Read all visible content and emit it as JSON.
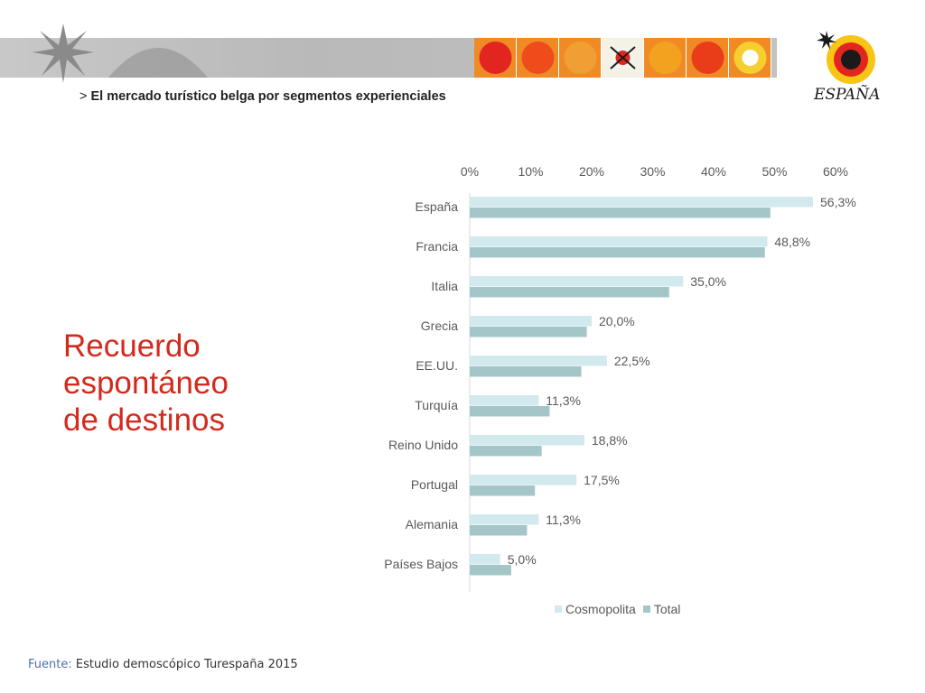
{
  "header": {
    "breadcrumb_arrow": ">",
    "breadcrumb_text": "El mercado turístico belga por segmentos experienciales",
    "logo_text": "ESPAÑA",
    "tile_colors": [
      "#e2261f",
      "#ef4c1c",
      "#f0a032",
      "#f5f5ee",
      "#f3a21f",
      "#e83d18",
      "#f6ce2e"
    ]
  },
  "slide_title": {
    "line1": "Recuerdo",
    "line2": "espontáneo",
    "line3": "de destinos"
  },
  "footer": {
    "label": "Fuente:",
    "value": "Estudio demoscópico Turespaña 2015"
  },
  "chart_data": {
    "type": "bar",
    "orientation": "horizontal",
    "categories": [
      "España",
      "Francia",
      "Italia",
      "Grecia",
      "EE.UU.",
      "Turquía",
      "Reino Unido",
      "Portugal",
      "Alemania",
      "Países Bajos"
    ],
    "series": [
      {
        "name": "Cosmopolita",
        "color": "#d2e9ee",
        "values": [
          56.3,
          48.8,
          35.0,
          20.0,
          22.5,
          11.3,
          18.8,
          17.5,
          11.3,
          5.0
        ],
        "labels": [
          "56,3%",
          "48,8%",
          "35,0%",
          "20,0%",
          "22,5%",
          "11,3%",
          "18,8%",
          "17,5%",
          "11,3%",
          "5,0%"
        ]
      },
      {
        "name": "Total",
        "color": "#a4c6c9",
        "values": [
          49.3,
          48.4,
          32.7,
          19.2,
          18.3,
          13.1,
          11.8,
          10.7,
          9.4,
          6.8
        ]
      }
    ],
    "xticks": [
      "0%",
      "10%",
      "20%",
      "30%",
      "40%",
      "50%",
      "60%"
    ],
    "xlim": [
      0,
      60
    ],
    "axis_position": "top",
    "legend_position": "bottom",
    "grid": false
  }
}
